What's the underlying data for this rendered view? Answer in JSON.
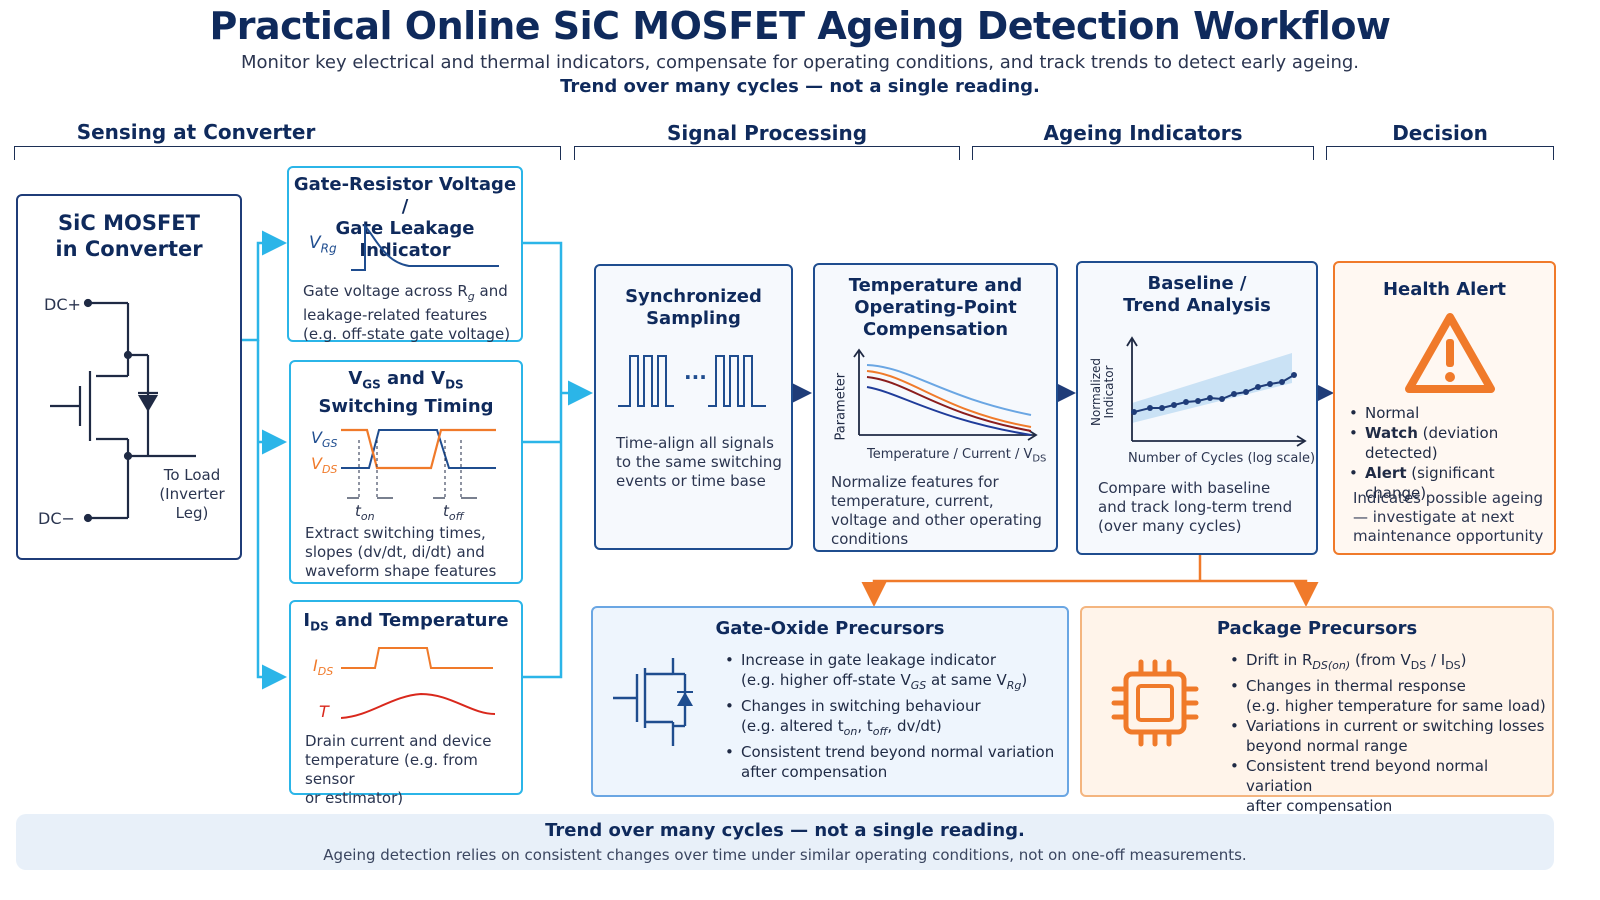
{
  "header": {
    "title": "Practical Online SiC MOSFET Ageing Detection Workflow",
    "subtitle": "Monitor key electrical and thermal indicators, compensate for operating conditions, and track trends to detect early ageing.",
    "tagline": "Trend over many cycles — not a single reading."
  },
  "sections": {
    "sensing": "Sensing at Converter",
    "processing": "Signal Processing",
    "indicators": "Ageing Indicators",
    "decision": "Decision"
  },
  "mosfet_box": {
    "title_line1": "SiC MOSFET",
    "title_line2": "in Converter",
    "dc_plus": "DC+",
    "dc_minus": "DC−",
    "load_line1": "To Load",
    "load_line2": "(Inverter Leg)"
  },
  "gate_resistor_box": {
    "title_line1": "Gate-Resistor Voltage /",
    "title_line2": "Gate Leakage Indicator",
    "signal": "V",
    "signal_sub": "Rg",
    "text_line1": "Gate voltage across R",
    "text_line1_sub": "g",
    "text_line1_end": " and",
    "text_line2": "leakage-related features",
    "text_line3": "(e.g. off-state gate voltage)"
  },
  "switching_box": {
    "title_v1": "V",
    "title_v1_sub": "GS",
    "title_and": " and V",
    "title_v2_sub": "DS",
    "title_line2": "Switching Timing",
    "vgs": "V",
    "vgs_sub": "GS",
    "vds": "V",
    "vds_sub": "DS",
    "t_on": "t",
    "t_on_sub": "on",
    "t_off": "t",
    "t_off_sub": "off",
    "text_line1": "Extract switching times,",
    "text_line2": "slopes (dv/dt, di/dt) and",
    "text_line3": "waveform shape features"
  },
  "ids_temp_box": {
    "title_i": "I",
    "title_i_sub": "DS",
    "title_rest": " and Temperature",
    "ids": "I",
    "ids_sub": "DS",
    "temp": "T",
    "text_line1": "Drain current and device",
    "text_line2": "temperature (e.g. from sensor",
    "text_line3": "or estimator)"
  },
  "sync_box": {
    "title_line1": "Synchronized",
    "title_line2": "Sampling",
    "dots": "···",
    "text_line1": "Time-align all signals",
    "text_line2": "to the same switching",
    "text_line3": "events or time base"
  },
  "comp_box": {
    "title_line1": "Temperature and",
    "title_line2": "Operating-Point",
    "title_line3": "Compensation",
    "ylabel": "Parameter",
    "xlabel": "Temperature / Current / V",
    "xlabel_sub": "DS",
    "text_line1": "Normalize features for",
    "text_line2": "temperature, current,",
    "text_line3": "voltage and other operating",
    "text_line4": "conditions"
  },
  "trend_box": {
    "title_line1": "Baseline /",
    "title_line2": "Trend Analysis",
    "ylabel_line1": "Normalized",
    "ylabel_line2": "Indicator",
    "xlabel": "Number of Cycles (log scale)",
    "text_line1": "Compare with baseline",
    "text_line2": "and track long-term trend",
    "text_line3": "(over many cycles)"
  },
  "alert_box": {
    "title": "Health Alert",
    "normal": "Normal",
    "watch": "Watch",
    "watch_detail": " (deviation detected)",
    "alert": "Alert",
    "alert_detail": " (significant change)",
    "text_line1": "Indicates possible ageing",
    "text_line2": "— investigate at next",
    "text_line3": "maintenance opportunity"
  },
  "gate_oxide": {
    "title": "Gate-Oxide Precursors",
    "b1_line1": "Increase in gate leakage indicator",
    "b1_line2_a": "(e.g. higher off-state V",
    "b1_line2_sub1": "GS",
    "b1_line2_b": " at same V",
    "b1_line2_sub2": "Rg",
    "b1_line2_c": ")",
    "b2_line1": "Changes in switching behaviour",
    "b2_line2_a": "(e.g. altered t",
    "b2_line2_sub1": "on",
    "b2_line2_b": ", t",
    "b2_line2_sub2": "off",
    "b2_line2_c": ", dv/dt)",
    "b3_line1": "Consistent trend beyond normal variation",
    "b3_line2": "after compensation"
  },
  "package": {
    "title": "Package Precursors",
    "b1_a": "Drift in R",
    "b1_sub1": "DS(on)",
    "b1_b": " (from V",
    "b1_sub2": "DS",
    "b1_c": " / I",
    "b1_sub3": "DS",
    "b1_d": ")",
    "b2_line1": "Changes in thermal response",
    "b2_line2": "(e.g. higher temperature for same load)",
    "b3_line1": "Variations in current or switching losses",
    "b3_line2": "beyond normal range",
    "b4_line1": "Consistent trend beyond normal variation",
    "b4_line2": "after compensation"
  },
  "footer": {
    "title": "Trend over many cycles — not a single reading.",
    "text": "Ageing detection relies on consistent changes over time under similar operating conditions, not on one-off measurements."
  },
  "colors": {
    "navy": "#0f2a5c",
    "cyan": "#2bb5e8",
    "orange": "#f07a2a",
    "light_blue": "#6aa6e3",
    "light_orange": "#f4b57f"
  },
  "icons": [
    "mosfet-circuit-icon",
    "warning-triangle-icon",
    "chip-icon",
    "mosfet-symbol-icon"
  ]
}
